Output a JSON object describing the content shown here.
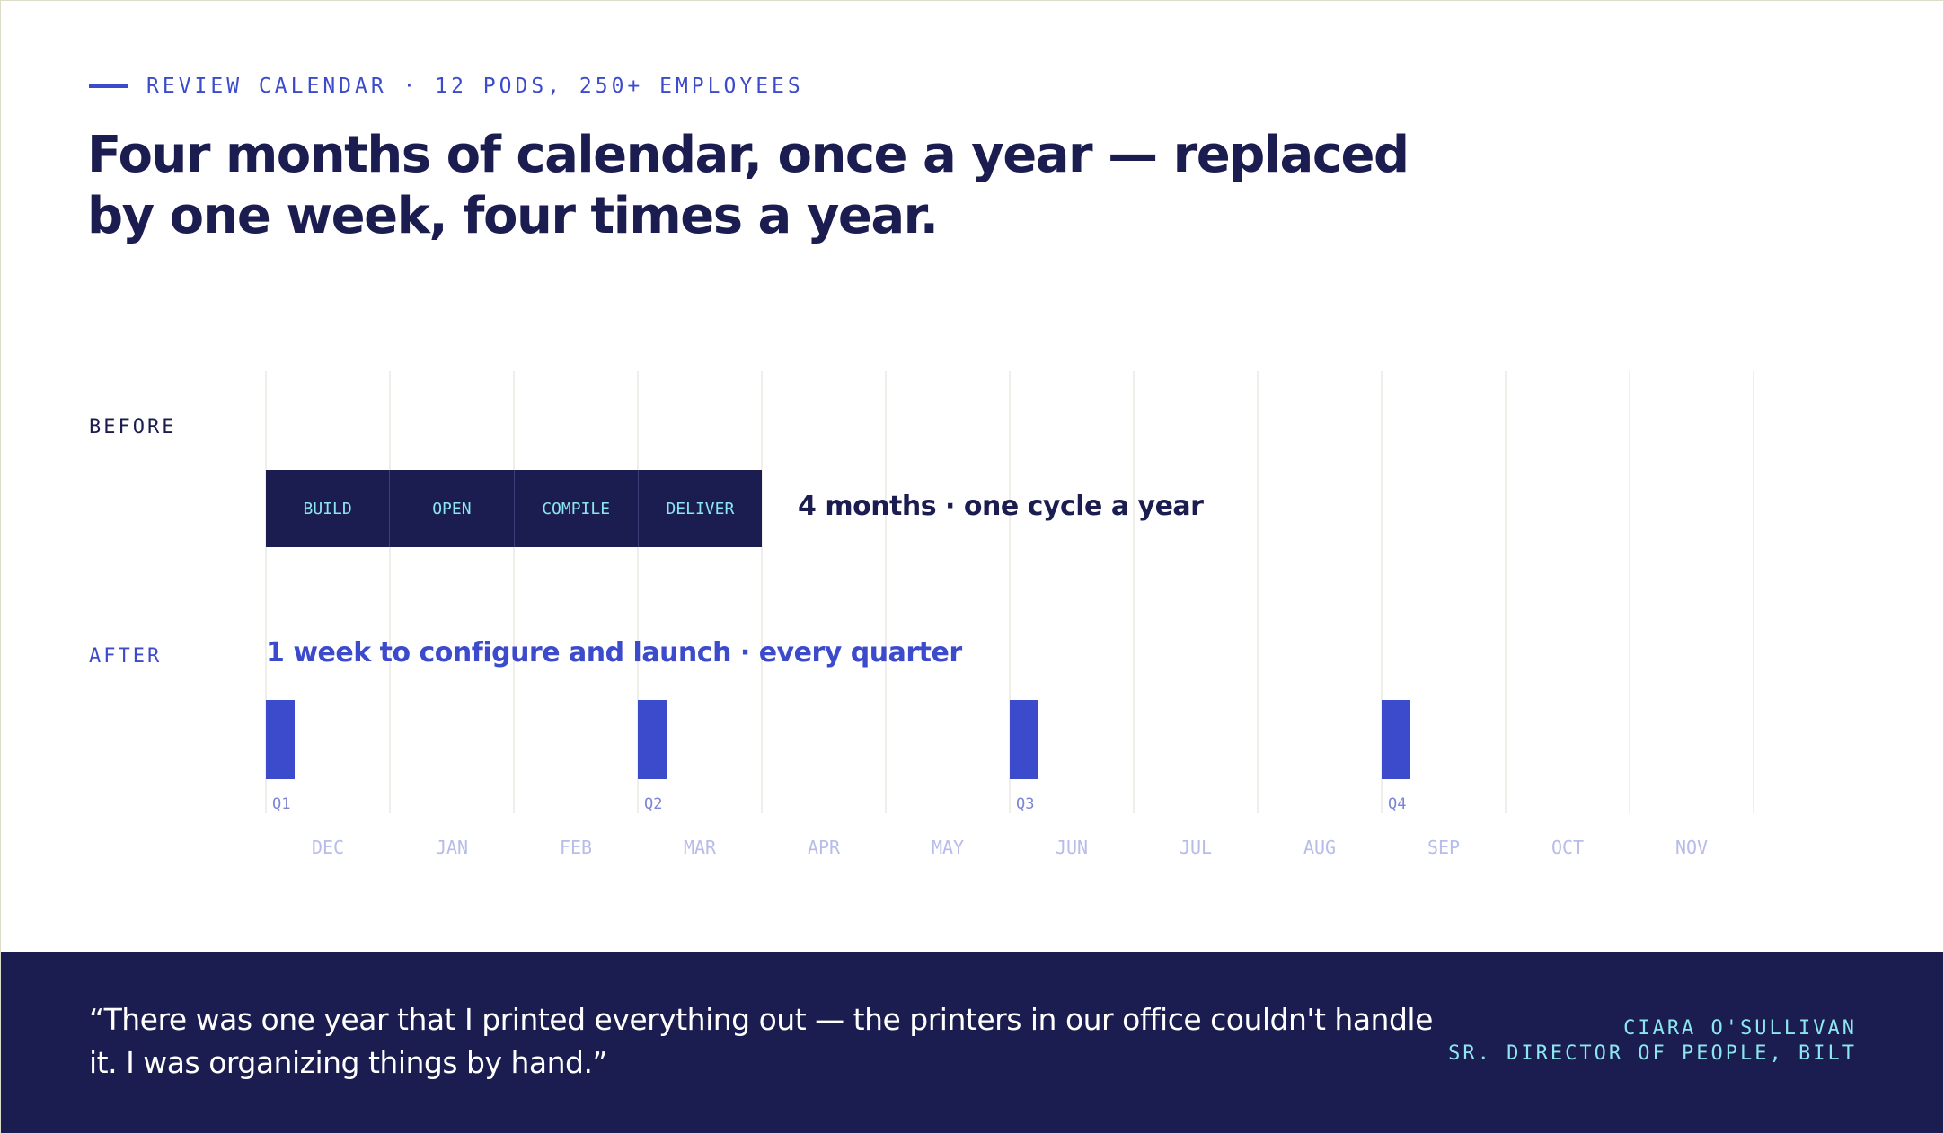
{
  "eyebrow": "REVIEW CALENDAR · 12 PODS, 250+ EMPLOYEES",
  "headline": "Four months of calendar, once a year — replaced by one week, four times a year.",
  "rows": {
    "before_label": "BEFORE",
    "after_label": "AFTER"
  },
  "months": [
    "DEC",
    "JAN",
    "FEB",
    "MAR",
    "APR",
    "MAY",
    "JUN",
    "JUL",
    "AUG",
    "SEP",
    "OCT",
    "NOV"
  ],
  "before": {
    "phases": [
      "BUILD",
      "OPEN",
      "COMPILE",
      "DELIVER"
    ],
    "start_month_index": 0,
    "duration_months": 4,
    "caption": "4 months · one cycle a year"
  },
  "after": {
    "caption": "1 week to configure and launch · every quarter",
    "duration_weeks": 1,
    "quarters": [
      {
        "label": "Q1",
        "month_index": 0
      },
      {
        "label": "Q2",
        "month_index": 3
      },
      {
        "label": "Q3",
        "month_index": 6
      },
      {
        "label": "Q4",
        "month_index": 9
      }
    ]
  },
  "quote": {
    "text": "“There was one year that I printed everything out — the printers in our office couldn't handle it. I was organizing things by hand.”",
    "name": "CIARA O'SULLIVAN",
    "title": "SR. DIRECTOR OF PEOPLE, BILT"
  },
  "colors": {
    "navy": "#1b1c4f",
    "accent": "#3c4bcc",
    "cyan": "#8be6ef"
  }
}
